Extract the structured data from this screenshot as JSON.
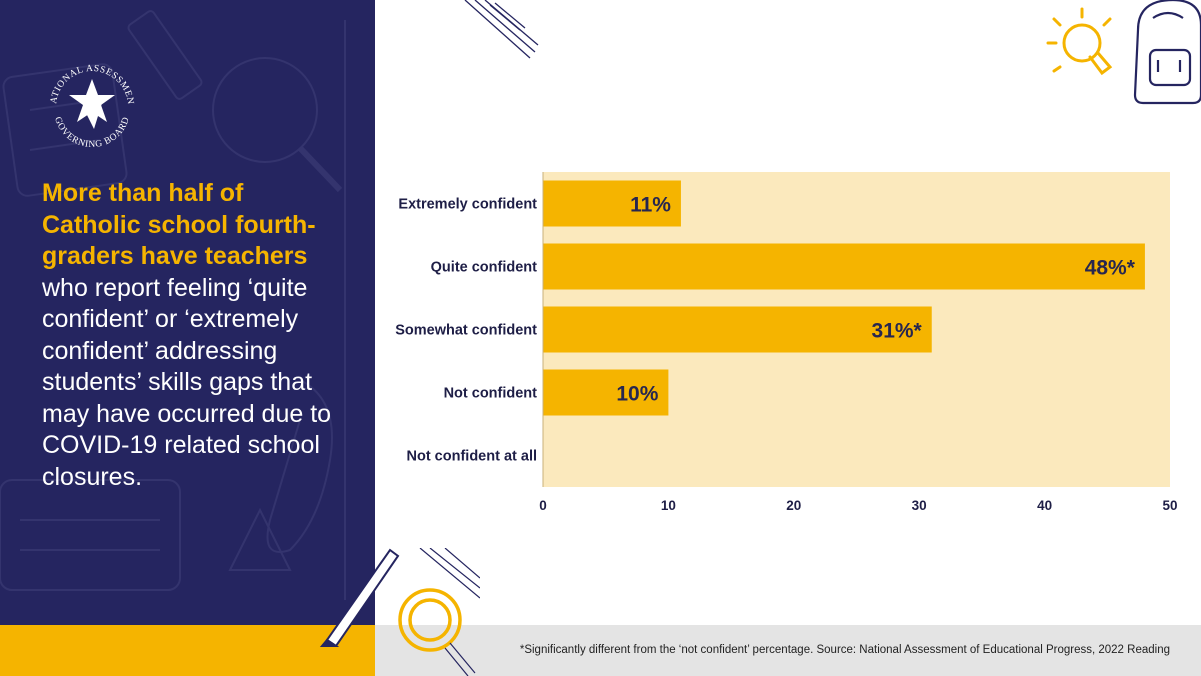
{
  "brand": {
    "logo_line1": "NATIONAL ASSESSMENT",
    "logo_line2": "GOVERNING BOARD"
  },
  "headline": {
    "highlight": "More than half of Catholic school fourth-graders have teachers",
    "rest": " who report feeling ‘quite confident’ or ‘extremely confident’ addressing students’ skills gaps that may have occurred due to COVID-19 related school closures."
  },
  "footnote": "*Significantly different from the ‘not confident’ percentage. Source: National Assessment of Educational Progress, 2022 Reading",
  "colors": {
    "navy": "#252560",
    "gold": "#f5b400",
    "plot_bg": "#fbe9bd",
    "footer_gray": "#e4e4e4"
  },
  "chart_data": {
    "type": "bar",
    "orientation": "horizontal",
    "categories": [
      "Extremely confident",
      "Quite confident",
      "Somewhat confident",
      "Not confident",
      "Not confident at all"
    ],
    "values": [
      11,
      48,
      31,
      10,
      0
    ],
    "data_labels": [
      "11%",
      "48%*",
      "31%*",
      "10%",
      ""
    ],
    "xlim": [
      0,
      50
    ],
    "xticks": [
      "0",
      "10",
      "20",
      "30",
      "40",
      "50"
    ],
    "title": "",
    "xlabel": "",
    "ylabel": "",
    "grid": false,
    "legend": "none"
  }
}
